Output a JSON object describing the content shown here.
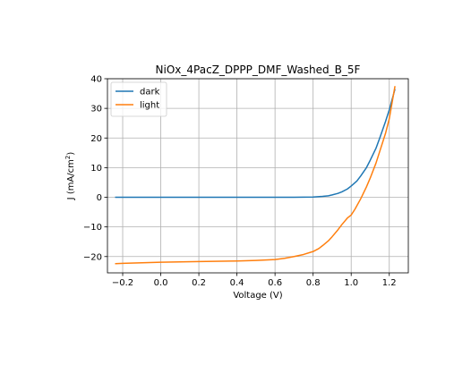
{
  "chart_data": {
    "type": "line",
    "title": "NiOx_4PacZ_DPPP_DMF_Washed_B_5F",
    "xlabel": "Voltage (V)",
    "ylabel_prefix": "J  (mA/cm",
    "ylabel_sup": "2",
    "ylabel_suffix": ")",
    "xlim": [
      -0.28,
      1.3
    ],
    "ylim": [
      -25.5,
      40
    ],
    "x_ticks": [
      -0.2,
      0.0,
      0.2,
      0.4,
      0.6,
      0.8,
      1.0,
      1.2
    ],
    "x_tick_labels": [
      "−0.2",
      "0.0",
      "0.2",
      "0.4",
      "0.6",
      "0.8",
      "1.0",
      "1.2"
    ],
    "y_ticks": [
      -20,
      -10,
      0,
      10,
      20,
      30,
      40
    ],
    "y_tick_labels": [
      "−20",
      "−10",
      "0",
      "10",
      "20",
      "30",
      "40"
    ],
    "grid": true,
    "legend_position": "top-left",
    "series": [
      {
        "name": "dark",
        "color": "#1f77b4",
        "x": [
          -0.24,
          0.0,
          0.2,
          0.4,
          0.6,
          0.7,
          0.75,
          0.8,
          0.85,
          0.88,
          0.9,
          0.93,
          0.95,
          0.98,
          1.0,
          1.03,
          1.05,
          1.08,
          1.1,
          1.13,
          1.15,
          1.18,
          1.2,
          1.23
        ],
        "y": [
          0,
          0,
          0,
          0,
          0,
          0,
          0.05,
          0.1,
          0.3,
          0.5,
          0.8,
          1.3,
          1.8,
          2.8,
          3.8,
          5.5,
          7.2,
          10.0,
          12.5,
          16.5,
          20.0,
          25.5,
          29.5,
          36.5
        ]
      },
      {
        "name": "light",
        "color": "#ff7f0e",
        "x": [
          -0.24,
          -0.2,
          -0.1,
          0.0,
          0.2,
          0.4,
          0.5,
          0.6,
          0.65,
          0.7,
          0.75,
          0.8,
          0.83,
          0.85,
          0.88,
          0.9,
          0.93,
          0.95,
          0.98,
          1.0,
          1.02,
          1.05,
          1.08,
          1.1,
          1.13,
          1.15,
          1.18,
          1.2,
          1.23
        ],
        "y": [
          -22.4,
          -22.3,
          -22.1,
          -21.9,
          -21.7,
          -21.5,
          -21.3,
          -21.0,
          -20.6,
          -20.0,
          -19.3,
          -18.3,
          -17.3,
          -16.3,
          -14.7,
          -13.3,
          -11.0,
          -9.3,
          -7.0,
          -6.0,
          -4.0,
          -0.5,
          3.5,
          6.5,
          11.5,
          15.5,
          21.5,
          26.5,
          37.5
        ]
      }
    ]
  }
}
